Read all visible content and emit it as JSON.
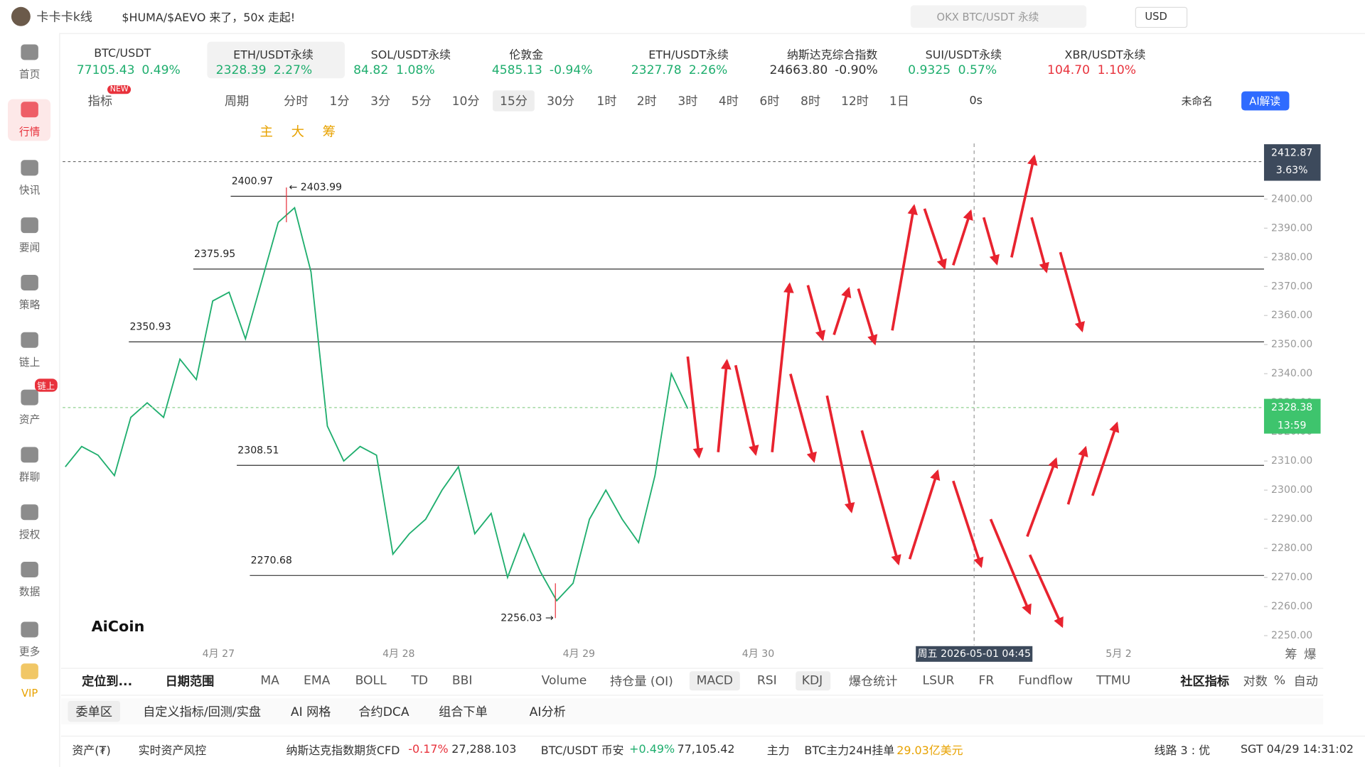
{
  "window": {
    "title": "卡卡卡k线",
    "notice": "$HUMA/$AEVO 来了，50x 走起!",
    "search": "OKX BTC/USDT 永续",
    "currency": "USD"
  },
  "sidebar": {
    "items": [
      "首页",
      "行情",
      "快讯",
      "要闻",
      "策略",
      "链上",
      "资产",
      "群聊",
      "授权",
      "数据",
      "更多",
      "VIP"
    ],
    "badge": "链上"
  },
  "tickers": [
    {
      "name": "BTC/USDT",
      "price": "77105.43",
      "change": "0.49%",
      "color": "#1fae6e"
    },
    {
      "name": "ETH/USDT永续",
      "price": "2328.39",
      "change": "2.27%",
      "color": "#1fae6e"
    },
    {
      "name": "SOL/USDT永续",
      "price": "84.82",
      "change": "1.08%",
      "color": "#1fae6e"
    },
    {
      "name": "伦敦金",
      "price": "4585.13",
      "change": "-0.94%",
      "color": "#1fae6e"
    },
    {
      "name": "ETH/USDT永续",
      "price": "2327.78",
      "change": "2.26%",
      "color": "#1fae6e"
    },
    {
      "name": "纳斯达克综合指数",
      "price": "24663.80",
      "change": "-0.90%",
      "color": "#333333"
    },
    {
      "name": "SUI/USDT永续",
      "price": "0.9325",
      "change": "0.57%",
      "color": "#1fae6e"
    },
    {
      "name": "XBR/USDT永续",
      "price": "104.70",
      "change": "1.10%",
      "color": "#e8323c"
    }
  ],
  "toolbar": {
    "items": [
      "指标",
      "周期",
      "分时",
      "1分",
      "3分",
      "5分",
      "10分",
      "15分",
      "30分",
      "1时",
      "2时",
      "3时",
      "4时",
      "6时",
      "8时",
      "12时",
      "1日"
    ],
    "new_badge": "NEW",
    "timer": "0s",
    "layout_name": "未命名",
    "ai_button": "AI解读",
    "drawing": [
      "主",
      "大",
      "筹"
    ]
  },
  "chart_data": {
    "type": "candlestick-screenshot",
    "ylim": [
      2247.3,
      2419.1
    ],
    "yticks": [
      {
        "value": 2250,
        "label": "2250.00"
      },
      {
        "value": 2260,
        "label": "2260.00"
      },
      {
        "value": 2270,
        "label": "2270.00"
      },
      {
        "value": 2280,
        "label": "2280.00"
      },
      {
        "value": 2290,
        "label": "2290.00"
      },
      {
        "value": 2300,
        "label": "2300.00"
      },
      {
        "value": 2310,
        "label": "2310.00"
      },
      {
        "value": 2320,
        "label": "2320.00"
      },
      {
        "value": 2330,
        "label": "2330.00"
      },
      {
        "value": 2340,
        "label": "2340.00"
      },
      {
        "value": 2350,
        "label": "2350.00"
      },
      {
        "value": 2360,
        "label": "2360.00"
      },
      {
        "value": 2370,
        "label": "2370.00"
      },
      {
        "value": 2380,
        "label": "2380.00"
      },
      {
        "value": 2390,
        "label": "2390.00"
      },
      {
        "value": 2400,
        "label": "2400.00"
      }
    ],
    "xticks": [
      "4月 27",
      "4月 28",
      "4月 29",
      "4月 30",
      "5月 2"
    ],
    "levels": [
      2400.97,
      2375.95,
      2350.93,
      2308.51,
      2270.68
    ],
    "high": {
      "value": 2403.99,
      "label": "← 2403.99"
    },
    "low": {
      "value": 2256.03,
      "label": "2256.03 →"
    },
    "current_price": 2328.38,
    "countdown": "13:59",
    "top_line": 2412.87,
    "top_change": "3.63%",
    "crosshair": "周五 2026-05-01 04:45",
    "logo": "AiCoin",
    "side_labels": [
      "筹",
      "爆"
    ],
    "closes": [
      2308,
      2315,
      2312,
      2305,
      2325,
      2330,
      2325,
      2345,
      2338,
      2365,
      2368,
      2352,
      2372,
      2392,
      2397,
      2375,
      2322,
      2310,
      2315,
      2312,
      2278,
      2285,
      2290,
      2300,
      2308,
      2285,
      2292,
      2270,
      2285,
      2272,
      2262,
      2268,
      2290,
      2300,
      2290,
      2282,
      2305,
      2340,
      2328
    ],
    "color_up": "#1fae6e"
  },
  "indicator_bar": [
    "定位到...",
    "日期范围",
    "MA",
    "EMA",
    "BOLL",
    "TD",
    "BBI",
    "Volume",
    "持仓量 (OI)",
    "MACD",
    "RSI",
    "KDJ",
    "爆仓统计",
    "LSUR",
    "FR",
    "Fundflow",
    "TTMU",
    "社区指标",
    "对数",
    "%",
    "自动"
  ],
  "tabs": [
    "委单区",
    "自定义指标/回测/实盘",
    "AI 网格",
    "合约DCA",
    "组合下单",
    "AI分析"
  ],
  "status": [
    "资产(₮)",
    "实时资产风控",
    "纳斯达克指数期货CFD",
    "-0.17%",
    "27,288.103",
    "BTC/USDT 币安",
    "+0.49%",
    "77,105.42",
    "主力",
    "BTC主力24H挂单",
    "29.03亿美元",
    "线路 3 : 优",
    "SGT 04/29 14:31:02"
  ]
}
